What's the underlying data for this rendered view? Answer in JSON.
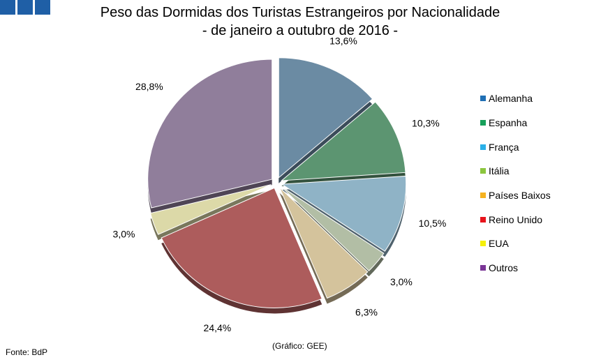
{
  "header": {
    "title_line1": "Peso das Dormidas dos Turistas Estrangeiros por Nacionalidade",
    "title_line2": "- de janeiro a outubro de 2016 -"
  },
  "chart_data": {
    "type": "pie",
    "title": "Peso das Dormidas dos Turistas Estrangeiros por Nacionalidade - de janeiro a outubro de 2016 -",
    "legend_position": "right",
    "labels": [
      "Alemanha",
      "Espanha",
      "França",
      "Itália",
      "Países Baixos",
      "Reino Unido",
      "EUA",
      "Outros"
    ],
    "values": [
      13.6,
      10.3,
      10.5,
      3.0,
      6.3,
      24.4,
      3.0,
      28.8
    ],
    "value_labels": [
      "13,6%",
      "10,3%",
      "10,5%",
      "3,0%",
      "6,3%",
      "24,4%",
      "3,0%",
      "28,8%"
    ],
    "legend_colors": [
      "#1f6fb4",
      "#16a05a",
      "#2ab0e8",
      "#8cc63e",
      "#f5b220",
      "#e8141c",
      "#f5f00a",
      "#7a3596"
    ],
    "slice_colors": [
      "#6b8ba3",
      "#5c9571",
      "#8fb3c6",
      "#b2bea5",
      "#d4c39c",
      "#ad5c5c",
      "#dcd9a8",
      "#907e9b"
    ]
  },
  "footer": {
    "source": "Fonte: BdP",
    "credit": "(Gráfico: GEE)"
  }
}
